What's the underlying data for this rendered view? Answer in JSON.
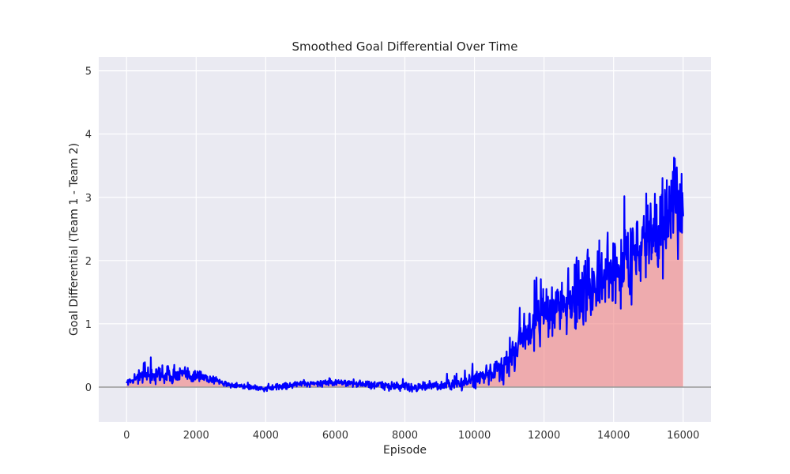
{
  "chart_data": {
    "type": "line",
    "title": "Smoothed Goal Differential Over Time",
    "xlabel": "Episode",
    "ylabel": "Goal Differential (Team 1 - Team 2)",
    "xlim": [
      -800,
      16800
    ],
    "ylim": [
      -0.55,
      5.22
    ],
    "x_ticks": [
      0,
      2000,
      4000,
      6000,
      8000,
      10000,
      12000,
      14000,
      16000
    ],
    "y_ticks": [
      0,
      1,
      2,
      3,
      4,
      5
    ],
    "grid": true,
    "legend": "none",
    "colors": {
      "background": "#eaeaf2",
      "grid": "#ffffff",
      "line": "#0000ff",
      "fill": "#f08080",
      "zero_line": "#999999"
    },
    "series": [
      {
        "x": [
          0,
          500,
          1000,
          1500,
          2000,
          2500,
          3000,
          3500,
          4000,
          4500,
          5000,
          5500,
          6000,
          6500,
          7000,
          7500,
          8000,
          8500,
          9000,
          9500,
          10000,
          10500,
          11000,
          11500,
          12000,
          12500,
          13000,
          13500,
          14000,
          14500,
          15000,
          15500,
          16000
        ],
        "y": [
          0.08,
          0.18,
          0.2,
          0.2,
          0.18,
          0.12,
          0.02,
          0.0,
          -0.03,
          0.02,
          0.05,
          0.06,
          0.07,
          0.06,
          0.04,
          0.02,
          0.0,
          0.0,
          0.02,
          0.05,
          0.12,
          0.2,
          0.45,
          0.9,
          1.15,
          1.3,
          1.45,
          1.6,
          1.8,
          2.1,
          2.35,
          2.6,
          3.0
        ],
        "spread": [
          0.06,
          0.15,
          0.18,
          0.16,
          0.13,
          0.08,
          0.04,
          0.04,
          0.05,
          0.06,
          0.06,
          0.06,
          0.07,
          0.07,
          0.08,
          0.08,
          0.09,
          0.09,
          0.1,
          0.12,
          0.14,
          0.2,
          0.35,
          0.45,
          0.5,
          0.55,
          0.6,
          0.65,
          0.7,
          0.75,
          0.8,
          0.85,
          0.9
        ]
      }
    ]
  }
}
